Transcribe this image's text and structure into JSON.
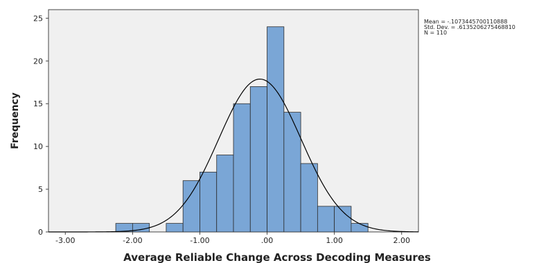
{
  "chart_data": {
    "type": "bar",
    "subtype": "histogram",
    "xlabel": "Average Reliable Change Across Decoding Measures",
    "ylabel": "Frequency",
    "xlim": [
      -3.25,
      2.25
    ],
    "ylim": [
      0,
      26
    ],
    "x_ticks": [
      "-3.00",
      "-2.00",
      "-1.00",
      ".00",
      "1.00",
      "2.00"
    ],
    "x_tick_values": [
      -3,
      -2,
      -1,
      0,
      1,
      2
    ],
    "y_ticks": [
      "0",
      "5",
      "10",
      "15",
      "20",
      "25"
    ],
    "y_tick_values": [
      0,
      5,
      10,
      15,
      20,
      25
    ],
    "bin_width": 0.25,
    "bins": [
      {
        "start": -2.25,
        "end": -2.0,
        "count": 1
      },
      {
        "start": -2.0,
        "end": -1.75,
        "count": 1
      },
      {
        "start": -1.5,
        "end": -1.25,
        "count": 1
      },
      {
        "start": -1.25,
        "end": -1.0,
        "count": 6
      },
      {
        "start": -1.0,
        "end": -0.75,
        "count": 7
      },
      {
        "start": -0.75,
        "end": -0.5,
        "count": 9
      },
      {
        "start": -0.5,
        "end": -0.25,
        "count": 15
      },
      {
        "start": -0.25,
        "end": 0.0,
        "count": 17
      },
      {
        "start": 0.0,
        "end": 0.25,
        "count": 24
      },
      {
        "start": 0.25,
        "end": 0.5,
        "count": 14
      },
      {
        "start": 0.5,
        "end": 0.75,
        "count": 8
      },
      {
        "start": 0.75,
        "end": 1.0,
        "count": 3
      },
      {
        "start": 1.0,
        "end": 1.25,
        "count": 3
      },
      {
        "start": 1.25,
        "end": 1.5,
        "count": 1
      }
    ],
    "normal_curve": {
      "mean": -0.1073445700110888,
      "sd": 0.613520627546881,
      "n": 110
    },
    "stats_text": [
      "Mean = -.1073445700110888",
      "Std. Dev. = .6135206275468810",
      "N = 110"
    ],
    "grid": false,
    "colors": {
      "bar_fill": "#7aa6d6",
      "bar_stroke": "#2b2b2b",
      "plot_bg": "#f0f0f0",
      "curve": "#000000"
    }
  }
}
